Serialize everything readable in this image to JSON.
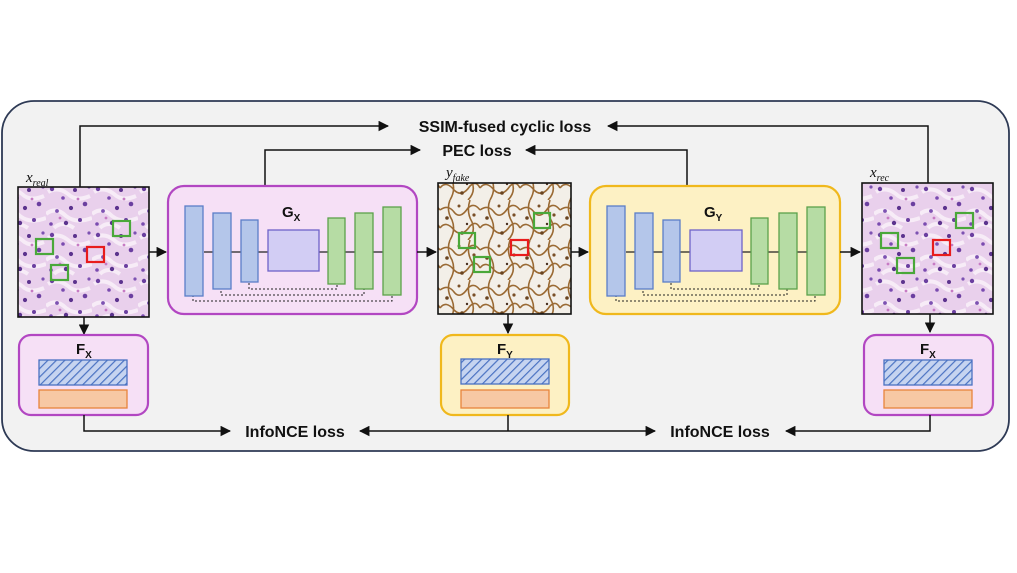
{
  "losses": {
    "ssim": "SSIM-fused cyclic loss",
    "pec": "PEC loss",
    "infonce_left": "InfoNCE loss",
    "infonce_right": "InfoNCE loss"
  },
  "images": {
    "x_real": {
      "base": "x",
      "sub": "real",
      "tissue": "H&E"
    },
    "y_fake": {
      "base": "y",
      "sub": "fake",
      "tissue": "IHC"
    },
    "x_rec": {
      "base": "x",
      "sub": "rec",
      "tissue": "H&E"
    }
  },
  "generators": {
    "gx": {
      "base": "G",
      "sub": "X"
    },
    "gy": {
      "base": "G",
      "sub": "Y"
    }
  },
  "encoders": {
    "fx_left": {
      "base": "F",
      "sub": "X"
    },
    "fy": {
      "base": "F",
      "sub": "Y"
    },
    "fx_right": {
      "base": "F",
      "sub": "X"
    }
  },
  "colors": {
    "purple_fill": "#f6e0f6",
    "purple_border": "#b247c2",
    "yellow_fill": "#fdf1c4",
    "yellow_border": "#f0b81c",
    "encoder_blue": "#b4c6ea",
    "encoder_blue_border": "#5b7ec8",
    "bottleneck": "#d2cdf4",
    "bottleneck_border": "#6e63c8",
    "decoder_green": "#b6dca4",
    "decoder_green_border": "#5ca14b",
    "hatch_blue": "#4a72c2",
    "feature_orange": "#f7c8a4",
    "feature_orange_border": "#e8843c",
    "patch_green": "#4aa83a",
    "patch_red": "#e81c1c",
    "panel_bg": "#f2f2f2",
    "panel_border": "#2e3a55"
  }
}
